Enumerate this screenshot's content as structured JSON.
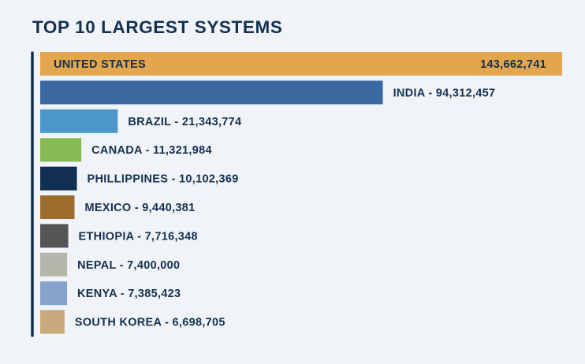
{
  "chart_data": {
    "type": "bar",
    "orientation": "horizontal",
    "title": "TOP 10 LARGEST SYSTEMS",
    "categories": [
      "UNITED STATES",
      "INDIA",
      "BRAZIL",
      "CANADA",
      "PHILLIPPINES",
      "MEXICO",
      "ETHIOPIA",
      "NEPAL",
      "KENYA",
      "SOUTH KOREA"
    ],
    "values": [
      143662741,
      94312457,
      21343774,
      11321984,
      10102369,
      9440381,
      7716348,
      7400000,
      7385423,
      6698705
    ],
    "value_labels": [
      "143,662,741",
      "94,312,457",
      "21,343,774",
      "11,321,984",
      "10,102,369",
      "9,440,381",
      "7,716,348",
      "7,400,000",
      "7,385,423",
      "6,698,705"
    ],
    "colors": [
      "#e1a64e",
      "#3b6aa3",
      "#4b97c9",
      "#85ba55",
      "#112f52",
      "#9d6d2f",
      "#555555",
      "#b5b6a9",
      "#86a4cb",
      "#c9a97c"
    ],
    "grid": false,
    "legend": "none"
  }
}
